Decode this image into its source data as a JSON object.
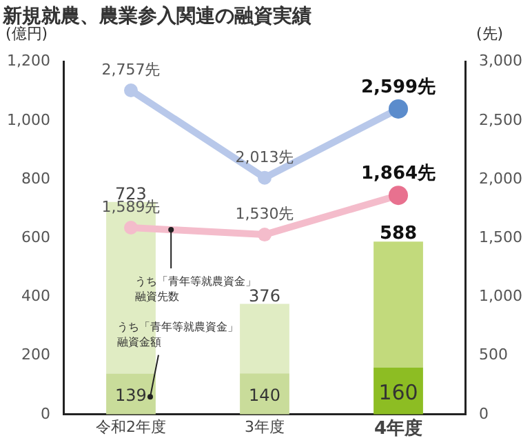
{
  "chart_data": {
    "type": "bar",
    "title": "新規就農、農業参入関連の融資実績",
    "ylabel": "(億円)",
    "y2label": "(先)",
    "categories": [
      "令和2年度",
      "3年度",
      "4年度"
    ],
    "stacked": true,
    "series": [
      {
        "name": "うち「青年等就農資金」融資金額",
        "type": "bar",
        "colors": [
          "#c9dc9a",
          "#c9dc9a",
          "#8dbd23"
        ],
        "values": [
          139,
          140,
          160
        ],
        "value_labels": [
          "139",
          "140",
          "160"
        ]
      },
      {
        "type": "bar",
        "colors": [
          "#e0ecc3",
          "#e0ecc3",
          "#c2da7c"
        ],
        "values": [
          584,
          236,
          428
        ]
      },
      {
        "type": "line",
        "axis": "y2",
        "color": "#b8c8ea",
        "colors": [
          "#b8c8ea",
          "#b8c8ea",
          "#5b8ccc"
        ],
        "values": [
          2757,
          2013,
          2599
        ],
        "value_labels": [
          "2,757先",
          "2,013先",
          "2,599先"
        ]
      },
      {
        "name": "うち「青年等就農資金」融資先数",
        "type": "line",
        "axis": "y2",
        "color": "#f4bccb",
        "colors": [
          "#f4bccb",
          "#f4bccb",
          "#e8718f"
        ],
        "values": [
          1589,
          1530,
          1864
        ],
        "value_labels": [
          "1,589先",
          "1,530先",
          "1,864先"
        ]
      }
    ],
    "totals": [
      "723",
      "376",
      "588"
    ],
    "ylim": [
      0,
      1200
    ],
    "yticks": [
      0,
      200,
      400,
      600,
      800,
      {
        "value": 1000,
        "label": "1,000"
      },
      {
        "value": 1200,
        "label": "1,200"
      }
    ],
    "y2lim": [
      0,
      3000
    ],
    "y2ticks": [
      0,
      500,
      {
        "value": 1000,
        "label": "1,000"
      },
      {
        "value": 1500,
        "label": "1,500"
      },
      {
        "value": 2000,
        "label": "2,000"
      },
      {
        "value": 2500,
        "label": "2,500"
      },
      {
        "value": 3000,
        "label": "3,000"
      }
    ],
    "grid": false,
    "legend": false,
    "marker": "circle",
    "line_style": "solid"
  }
}
